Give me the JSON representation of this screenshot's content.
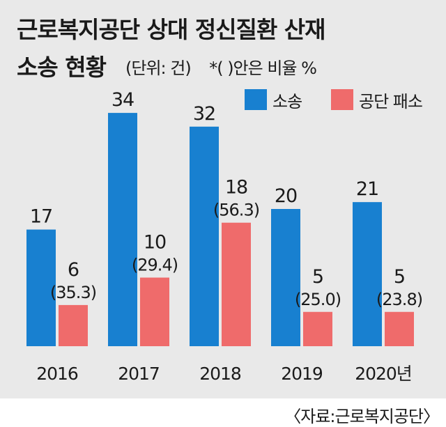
{
  "title_line1": "근로복지공단 상대 정신질환 산재",
  "title_line2": "소송 현황",
  "unit": "(단위: 건)",
  "note": "*( )안은 비율 %",
  "source": "〈자료:근로복지공단〉",
  "colors": {
    "series_a": "#1880d0",
    "series_b": "#ef6b6b",
    "panel": "#e9e9e9"
  },
  "chart_data": {
    "type": "bar",
    "categories": [
      "2016",
      "2017",
      "2018",
      "2019",
      "2020년"
    ],
    "series": [
      {
        "name": "소송",
        "values": [
          17,
          34,
          32,
          20,
          21
        ]
      },
      {
        "name": "공단 패소",
        "values": [
          6,
          10,
          18,
          5,
          5
        ],
        "ratios": [
          "(35.3)",
          "(29.4)",
          "(56.3)",
          "(25.0)",
          "(23.8)"
        ]
      }
    ],
    "ylim": [
      0,
      34
    ]
  }
}
